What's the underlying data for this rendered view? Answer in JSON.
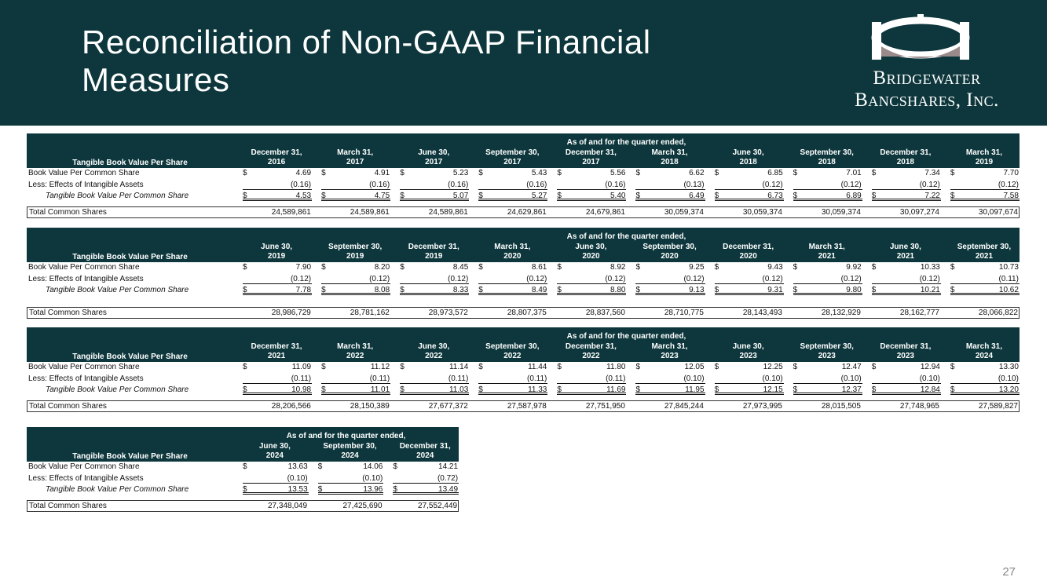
{
  "header": {
    "title": "Reconciliation of Non-GAAP Financial Measures",
    "logo": [
      "Bridgewater",
      "Bancshares, Inc."
    ]
  },
  "currency": "$",
  "tables": [
    {
      "group_header": "As of and for the quarter ended,",
      "row_header": "Tangible Book Value Per Share",
      "columns": [
        [
          "December 31,",
          "2016"
        ],
        [
          "March 31,",
          "2017"
        ],
        [
          "June 30,",
          "2017"
        ],
        [
          "September 30,",
          "2017"
        ],
        [
          "December 31,",
          "2017"
        ],
        [
          "March 31,",
          "2018"
        ],
        [
          "June 30,",
          "2018"
        ],
        [
          "September 30,",
          "2018"
        ],
        [
          "December 31,",
          "2018"
        ],
        [
          "March 31,",
          "2019"
        ]
      ],
      "rows": [
        {
          "label": "Book Value Per Common Share",
          "values": [
            "4.69",
            "4.91",
            "5.23",
            "5.43",
            "5.56",
            "6.62",
            "6.85",
            "7.01",
            "7.34",
            "7.70"
          ]
        },
        {
          "label": "Less: Effects of Intangible Assets",
          "values": [
            "(0.16)",
            "(0.16)",
            "(0.16)",
            "(0.16)",
            "(0.16)",
            "(0.13)",
            "(0.12)",
            "(0.12)",
            "(0.12)",
            "(0.12)"
          ]
        },
        {
          "label": "Tangible Book Value Per Common Share",
          "values": [
            "4.53",
            "4.75",
            "5.07",
            "5.27",
            "5.40",
            "6.49",
            "6.73",
            "6.89",
            "7.22",
            "7.58"
          ]
        }
      ],
      "total": {
        "label": "Total Common Shares",
        "values": [
          "24,589,861",
          "24,589,861",
          "24,589,861",
          "24,629,861",
          "24,679,861",
          "30,059,374",
          "30,059,374",
          "30,059,374",
          "30,097,274",
          "30,097,674"
        ]
      }
    },
    {
      "group_header": "As of and for the quarter ended,",
      "row_header": "Tangible Book Value Per Share",
      "columns": [
        [
          "June 30,",
          "2019"
        ],
        [
          "September 30,",
          "2019"
        ],
        [
          "December 31,",
          "2019"
        ],
        [
          "March 31,",
          "2020"
        ],
        [
          "June 30,",
          "2020"
        ],
        [
          "September 30,",
          "2020"
        ],
        [
          "December 31,",
          "2020"
        ],
        [
          "March 31,",
          "2021"
        ],
        [
          "June 30,",
          "2021"
        ],
        [
          "September 30,",
          "2021"
        ]
      ],
      "rows": [
        {
          "label": "Book Value Per Common Share",
          "values": [
            "7.90",
            "8.20",
            "8.45",
            "8.61",
            "8.92",
            "9.25",
            "9.43",
            "9.92",
            "10.33",
            "10.73"
          ]
        },
        {
          "label": "Less: Effects of Intangible Assets",
          "values": [
            "(0.12)",
            "(0.12)",
            "(0.12)",
            "(0.12)",
            "(0.12)",
            "(0.12)",
            "(0.12)",
            "(0.12)",
            "(0.12)",
            "(0.11)"
          ]
        },
        {
          "label": "Tangible Book Value Per Common Share",
          "values": [
            "7.78",
            "8.08",
            "8.33",
            "8.49",
            "8.80",
            "9.13",
            "9.31",
            "9.80",
            "10.21",
            "10.62"
          ]
        }
      ],
      "total": {
        "label": "Total Common Shares",
        "values": [
          "28,986,729",
          "28,781,162",
          "28,973,572",
          "28,807,375",
          "28,837,560",
          "28,710,775",
          "28,143,493",
          "28,132,929",
          "28,162,777",
          "28,066,822"
        ]
      }
    },
    {
      "group_header": "As of and for the quarter ended,",
      "row_header": "Tangible Book Value Per Share",
      "columns": [
        [
          "December 31,",
          "2021"
        ],
        [
          "March 31,",
          "2022"
        ],
        [
          "June 30,",
          "2022"
        ],
        [
          "September 30,",
          "2022"
        ],
        [
          "December 31,",
          "2022"
        ],
        [
          "March 31,",
          "2023"
        ],
        [
          "June 30,",
          "2023"
        ],
        [
          "September 30,",
          "2023"
        ],
        [
          "December 31,",
          "2023"
        ],
        [
          "March 31,",
          "2024"
        ]
      ],
      "rows": [
        {
          "label": "Book Value Per Common Share",
          "values": [
            "11.09",
            "11.12",
            "11.14",
            "11.44",
            "11.80",
            "12.05",
            "12.25",
            "12.47",
            "12.94",
            "13.30"
          ]
        },
        {
          "label": "Less: Effects of Intangible Assets",
          "values": [
            "(0.11)",
            "(0.11)",
            "(0.11)",
            "(0.11)",
            "(0.11)",
            "(0.10)",
            "(0.10)",
            "(0.10)",
            "(0.10)",
            "(0.10)"
          ]
        },
        {
          "label": "Tangible Book Value Per Common Share",
          "values": [
            "10.98",
            "11.01",
            "11.03",
            "11.33",
            "11.69",
            "11.95",
            "12.15",
            "12.37",
            "12.84",
            "13.20"
          ]
        }
      ],
      "total": {
        "label": "Total Common Shares",
        "values": [
          "28,206,566",
          "28,150,389",
          "27,677,372",
          "27,587,978",
          "27,751,950",
          "27,845,244",
          "27,973,995",
          "28,015,505",
          "27,748,965",
          "27,589,827"
        ]
      }
    },
    {
      "group_header": "As of and for the quarter ended,",
      "row_header": "Tangible Book Value Per Share",
      "columns": [
        [
          "June 30,",
          "2024"
        ],
        [
          "September 30,",
          "2024"
        ],
        [
          "December 31,",
          "2024"
        ]
      ],
      "rows": [
        {
          "label": "Book Value Per Common Share",
          "values": [
            "13.63",
            "14.06",
            "14.21"
          ]
        },
        {
          "label": "Less: Effects of Intangible Assets",
          "values": [
            "(0.10)",
            "(0.10)",
            "(0.72)"
          ]
        },
        {
          "label": "Tangible Book Value Per Common Share",
          "values": [
            "13.53",
            "13.96",
            "13.49"
          ]
        }
      ],
      "total": {
        "label": "Total Common Shares",
        "values": [
          "27,348,049",
          "27,425,690",
          "27,552,449"
        ]
      }
    }
  ],
  "page_number": "27"
}
